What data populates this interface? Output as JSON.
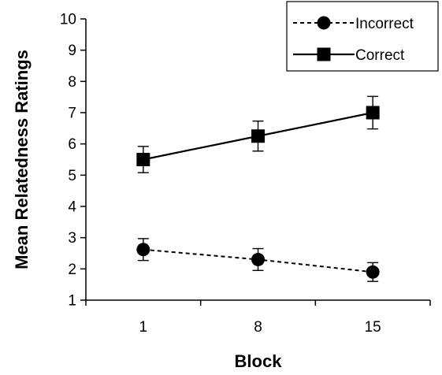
{
  "chart_data": {
    "type": "line",
    "xlabel": "Block",
    "ylabel": "Mean Relatedness Ratings",
    "categories": [
      "1",
      "8",
      "15"
    ],
    "ylim": [
      1,
      10
    ],
    "yticks": [
      "1",
      "2",
      "3",
      "4",
      "5",
      "6",
      "7",
      "8",
      "9",
      "10"
    ],
    "grid": false,
    "legend_position": "top-right",
    "series": [
      {
        "name": "Incorrect",
        "marker": "circle",
        "line_style": "dashed",
        "color": "#000000",
        "values": [
          2.62,
          2.3,
          1.9
        ],
        "error": [
          0.35,
          0.35,
          0.3
        ]
      },
      {
        "name": "Correct",
        "marker": "square",
        "line_style": "solid",
        "color": "#000000",
        "values": [
          5.5,
          6.25,
          7.0
        ],
        "error": [
          0.42,
          0.48,
          0.52
        ]
      }
    ]
  }
}
